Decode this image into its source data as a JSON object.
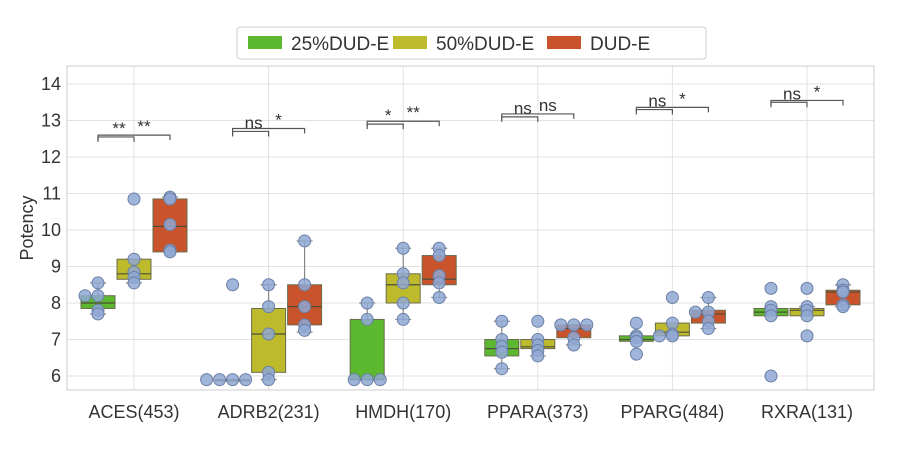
{
  "chart_data": {
    "type": "box",
    "title": "",
    "xlabel": "",
    "ylabel": "Potency",
    "ylim": [
      5.6,
      14.6
    ],
    "yticks": [
      6,
      7,
      8,
      9,
      10,
      11,
      12,
      13,
      14
    ],
    "grid": true,
    "legend_placement": "top-center",
    "categories": [
      "ACES(453)",
      "ADRB2(231)",
      "HMDH(170)",
      "PPARA(373)",
      "PPARG(484)",
      "RXRA(131)"
    ],
    "series": [
      {
        "name": "25%DUD-E",
        "color": "#5cb82e",
        "boxes": [
          {
            "q1": 7.85,
            "median": 8.0,
            "q3": 8.2,
            "whisker_low": 7.7,
            "whisker_high": 8.55,
            "points": [
              8.55,
              8.2,
              8.2,
              7.8,
              7.7
            ]
          },
          {
            "q1": 5.9,
            "median": 5.9,
            "q3": 5.9,
            "whisker_low": 5.9,
            "whisker_high": 5.9,
            "points": [
              8.5,
              5.9,
              5.9,
              5.9,
              5.9
            ]
          },
          {
            "q1": 5.9,
            "median": 5.9,
            "q3": 7.55,
            "whisker_low": 5.9,
            "whisker_high": 8.0,
            "points": [
              8.0,
              7.55,
              5.9,
              5.9,
              5.9
            ]
          },
          {
            "q1": 6.55,
            "median": 6.75,
            "q3": 7.0,
            "whisker_low": 6.2,
            "whisker_high": 7.5,
            "points": [
              7.5,
              7.0,
              6.8,
              6.65,
              6.2
            ]
          },
          {
            "q1": 6.95,
            "median": 7.0,
            "q3": 7.1,
            "whisker_low": 6.95,
            "whisker_high": 7.1,
            "points": [
              7.45,
              7.1,
              7.05,
              6.95,
              6.6
            ]
          },
          {
            "q1": 7.65,
            "median": 7.75,
            "q3": 7.85,
            "whisker_low": 7.65,
            "whisker_high": 7.85,
            "points": [
              8.4,
              7.9,
              7.8,
              7.65,
              6.0
            ]
          }
        ]
      },
      {
        "name": "50%DUD-E",
        "color": "#bdbb2c",
        "boxes": [
          {
            "q1": 8.65,
            "median": 8.8,
            "q3": 9.2,
            "whisker_low": 8.55,
            "whisker_high": 9.2,
            "points": [
              10.85,
              9.2,
              8.85,
              8.7,
              8.55
            ]
          },
          {
            "q1": 6.1,
            "median": 7.15,
            "q3": 7.85,
            "whisker_low": 5.9,
            "whisker_high": 8.5,
            "points": [
              8.5,
              7.9,
              7.15,
              6.1,
              5.9
            ]
          },
          {
            "q1": 8.0,
            "median": 8.5,
            "q3": 8.8,
            "whisker_low": 7.55,
            "whisker_high": 9.5,
            "points": [
              9.5,
              8.8,
              8.55,
              8.0,
              7.55
            ]
          },
          {
            "q1": 6.75,
            "median": 6.8,
            "q3": 7.0,
            "whisker_low": 6.55,
            "whisker_high": 7.0,
            "points": [
              7.5,
              7.0,
              6.85,
              6.7,
              6.55
            ]
          },
          {
            "q1": 7.1,
            "median": 7.2,
            "q3": 7.45,
            "whisker_low": 7.1,
            "whisker_high": 7.45,
            "points": [
              8.15,
              7.45,
              7.15,
              7.1,
              7.1
            ]
          },
          {
            "q1": 7.65,
            "median": 7.8,
            "q3": 7.85,
            "whisker_low": 7.65,
            "whisker_high": 7.9,
            "points": [
              8.4,
              7.9,
              7.8,
              7.65,
              7.1
            ]
          }
        ]
      },
      {
        "name": "DUD-E",
        "color": "#c9542c",
        "boxes": [
          {
            "q1": 9.4,
            "median": 10.1,
            "q3": 10.85,
            "whisker_low": 9.4,
            "whisker_high": 10.9,
            "points": [
              10.9,
              10.85,
              10.15,
              9.45,
              9.4
            ]
          },
          {
            "q1": 7.4,
            "median": 7.9,
            "q3": 8.5,
            "whisker_low": 7.2,
            "whisker_high": 9.7,
            "points": [
              9.7,
              8.5,
              7.9,
              7.4,
              7.25
            ]
          },
          {
            "q1": 8.5,
            "median": 8.65,
            "q3": 9.3,
            "whisker_low": 8.15,
            "whisker_high": 9.5,
            "points": [
              9.5,
              9.3,
              8.75,
              8.55,
              8.15
            ]
          },
          {
            "q1": 7.05,
            "median": 7.3,
            "q3": 7.4,
            "whisker_low": 6.85,
            "whisker_high": 7.4,
            "points": [
              7.4,
              7.4,
              7.4,
              7.05,
              6.85
            ]
          },
          {
            "q1": 7.45,
            "median": 7.7,
            "q3": 7.8,
            "whisker_low": 7.3,
            "whisker_high": 8.15,
            "points": [
              8.15,
              7.75,
              7.75,
              7.5,
              7.3
            ]
          },
          {
            "q1": 7.95,
            "median": 8.3,
            "q3": 8.35,
            "whisker_low": 7.9,
            "whisker_high": 8.5,
            "points": [
              8.5,
              8.35,
              8.3,
              7.95,
              7.9
            ]
          }
        ]
      }
    ],
    "point_color": "#8fa8d4",
    "significance": [
      {
        "category": "ACES(453)",
        "pairs": [
          {
            "from": "25%DUD-E",
            "to": "50%DUD-E",
            "label": "**",
            "level": 12.55
          },
          {
            "from": "25%DUD-E",
            "to": "DUD-E",
            "label": "**",
            "level": 12.6
          }
        ]
      },
      {
        "category": "ADRB2(231)",
        "pairs": [
          {
            "from": "25%DUD-E",
            "to": "50%DUD-E",
            "label": "ns",
            "level": 12.7
          },
          {
            "from": "25%DUD-E",
            "to": "DUD-E",
            "label": "*",
            "level": 12.78
          }
        ]
      },
      {
        "category": "HMDH(170)",
        "pairs": [
          {
            "from": "25%DUD-E",
            "to": "50%DUD-E",
            "label": "*",
            "level": 12.9
          },
          {
            "from": "25%DUD-E",
            "to": "DUD-E",
            "label": "**",
            "level": 12.98
          }
        ]
      },
      {
        "category": "PPARA(373)",
        "pairs": [
          {
            "from": "25%DUD-E",
            "to": "50%DUD-E",
            "label": "ns",
            "level": 13.1
          },
          {
            "from": "25%DUD-E",
            "to": "DUD-E",
            "label": "ns",
            "level": 13.18
          }
        ]
      },
      {
        "category": "PPARG(484)",
        "pairs": [
          {
            "from": "25%DUD-E",
            "to": "50%DUD-E",
            "label": "ns",
            "level": 13.3
          },
          {
            "from": "25%DUD-E",
            "to": "DUD-E",
            "label": "*",
            "level": 13.36
          }
        ]
      },
      {
        "category": "RXRA(131)",
        "pairs": [
          {
            "from": "25%DUD-E",
            "to": "50%DUD-E",
            "label": "ns",
            "level": 13.5
          },
          {
            "from": "25%DUD-E",
            "to": "DUD-E",
            "label": "*",
            "level": 13.55
          }
        ]
      }
    ]
  }
}
